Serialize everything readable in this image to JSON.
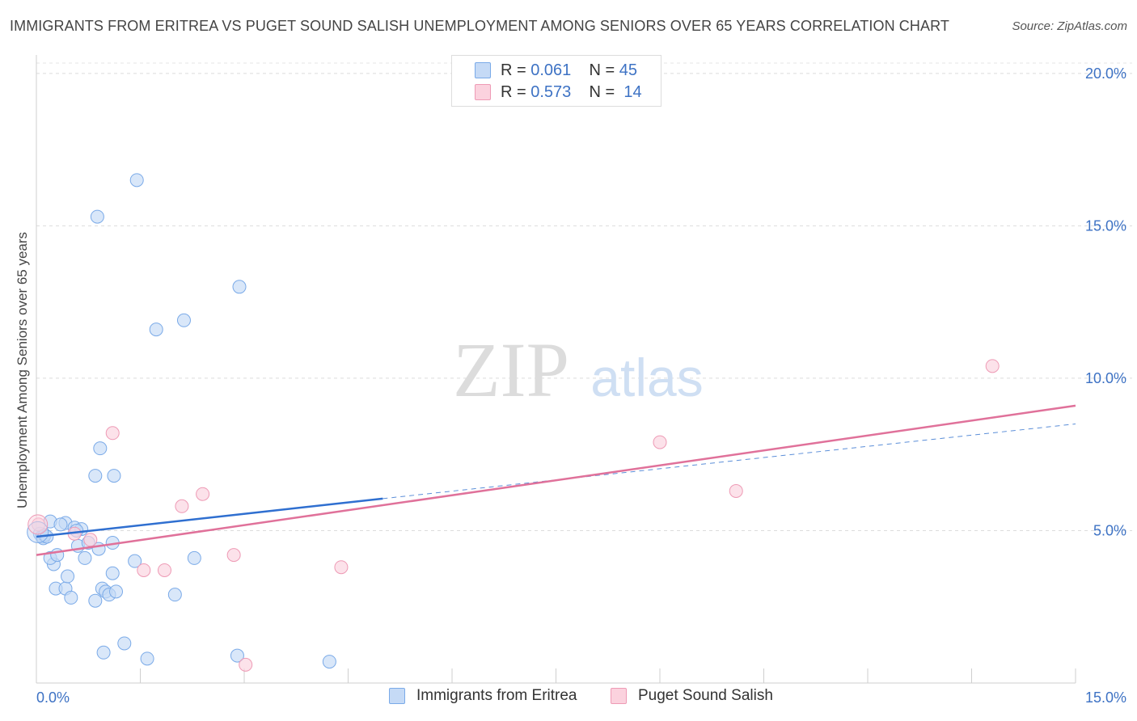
{
  "title": "IMMIGRANTS FROM ERITREA VS PUGET SOUND SALISH UNEMPLOYMENT AMONG SENIORS OVER 65 YEARS CORRELATION CHART",
  "source": "Source: ZipAtlas.com",
  "watermark": {
    "zip": "ZIP",
    "atlas": "atlas"
  },
  "legend_top": [
    {
      "r_label": "R =",
      "r_value": "0.061",
      "n_label": "N =",
      "n_value": "45"
    },
    {
      "r_label": "R =",
      "r_value": "0.573",
      "n_label": "N =",
      "n_value": "14"
    }
  ],
  "chart_data": {
    "type": "scatter",
    "title": "IMMIGRANTS FROM ERITREA VS PUGET SOUND SALISH UNEMPLOYMENT AMONG SENIORS OVER 65 YEARS CORRELATION CHART",
    "xlabel": "",
    "ylabel": "Unemployment Among Seniors over 65 years",
    "xlim": [
      0,
      15
    ],
    "ylim": [
      0,
      20.5
    ],
    "x_tick_labels": [
      "0.0%",
      "15.0%"
    ],
    "y_tick_values": [
      5,
      10,
      15,
      20
    ],
    "y_tick_labels": [
      "5.0%",
      "10.0%",
      "15.0%",
      "20.0%"
    ],
    "grid": true,
    "legend_position": "bottom",
    "series": [
      {
        "name": "Immigrants from Eritrea",
        "color": "#7aaae8",
        "fill": "#c5daf6",
        "r": "0.061",
        "n": "45",
        "points": [
          [
            0.05,
            4.9
          ],
          [
            0.08,
            4.8
          ],
          [
            0.1,
            4.75
          ],
          [
            0.12,
            4.85
          ],
          [
            0.15,
            4.8
          ],
          [
            0.2,
            5.3
          ],
          [
            0.25,
            3.9
          ],
          [
            0.2,
            4.1
          ],
          [
            0.3,
            4.2
          ],
          [
            0.28,
            3.1
          ],
          [
            0.42,
            3.1
          ],
          [
            0.45,
            3.5
          ],
          [
            0.5,
            2.8
          ],
          [
            0.42,
            5.25
          ],
          [
            0.55,
            5.1
          ],
          [
            0.65,
            5.05
          ],
          [
            0.6,
            4.5
          ],
          [
            0.7,
            4.1
          ],
          [
            0.75,
            4.6
          ],
          [
            0.85,
            2.7
          ],
          [
            0.95,
            3.1
          ],
          [
            1.0,
            3.0
          ],
          [
            1.05,
            2.9
          ],
          [
            0.9,
            4.4
          ],
          [
            1.1,
            4.6
          ],
          [
            1.15,
            3.0
          ],
          [
            1.1,
            3.6
          ],
          [
            0.85,
            6.8
          ],
          [
            0.92,
            7.7
          ],
          [
            1.12,
            6.8
          ],
          [
            0.97,
            1.0
          ],
          [
            1.27,
            1.3
          ],
          [
            1.42,
            4.0
          ],
          [
            1.6,
            0.8
          ],
          [
            2.0,
            2.9
          ],
          [
            2.28,
            4.1
          ],
          [
            2.9,
            0.9
          ],
          [
            4.23,
            0.7
          ],
          [
            0.88,
            15.3
          ],
          [
            1.45,
            16.5
          ],
          [
            2.13,
            11.9
          ],
          [
            1.73,
            11.6
          ],
          [
            2.93,
            13.0
          ],
          [
            0.58,
            5.0
          ],
          [
            0.35,
            5.2
          ]
        ]
      },
      {
        "name": "Puget Sound Salish",
        "color": "#ee9ab5",
        "fill": "#fbd2de",
        "r": "0.573",
        "n": "14",
        "points": [
          [
            0.03,
            5.2
          ],
          [
            0.55,
            4.9
          ],
          [
            0.78,
            4.7
          ],
          [
            1.1,
            8.2
          ],
          [
            1.55,
            3.7
          ],
          [
            1.85,
            3.7
          ],
          [
            2.1,
            5.8
          ],
          [
            2.4,
            6.2
          ],
          [
            2.85,
            4.2
          ],
          [
            3.02,
            0.6
          ],
          [
            4.4,
            3.8
          ],
          [
            9.0,
            7.9
          ],
          [
            10.1,
            6.3
          ],
          [
            13.8,
            10.4
          ]
        ]
      }
    ],
    "trend_lines": [
      {
        "series": "Immigrants from Eritrea",
        "solid": [
          [
            0,
            4.8
          ],
          [
            5.0,
            6.05
          ]
        ],
        "dashed": [
          [
            5.0,
            6.05
          ],
          [
            15.0,
            8.5
          ]
        ]
      },
      {
        "series": "Puget Sound Salish",
        "solid": [
          [
            0,
            4.2
          ],
          [
            15.0,
            9.1
          ]
        ]
      }
    ]
  },
  "legend_bottom": [
    {
      "label": "Immigrants from Eritrea",
      "color": "#c5daf6",
      "border": "#7aaae8"
    },
    {
      "label": "Puget Sound Salish",
      "color": "#fbd2de",
      "border": "#ee9ab5"
    }
  ]
}
